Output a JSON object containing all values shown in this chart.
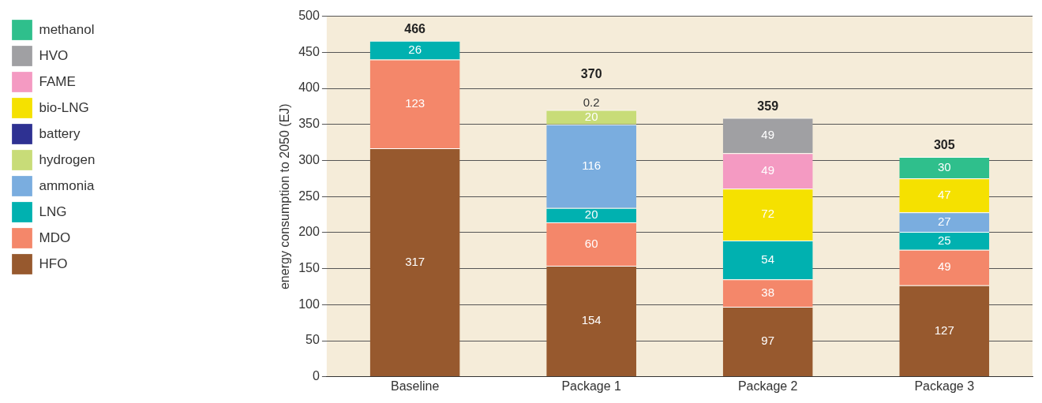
{
  "chart_data": {
    "type": "bar",
    "stacked": true,
    "ylabel": "energy consumption to 2050 (EJ)",
    "categories": [
      "Baseline",
      "Package 1",
      "Package 2",
      "Package 3"
    ],
    "ylim": [
      0,
      500
    ],
    "yticks": [
      0,
      50,
      100,
      150,
      200,
      250,
      300,
      350,
      400,
      450,
      500
    ],
    "grid": "y",
    "legend": "left",
    "data_labels": true,
    "totals": [
      "466",
      "370",
      "359",
      "305"
    ],
    "series": [
      {
        "name": "HFO",
        "color": "#97592e",
        "values": [
          317,
          154,
          97,
          127
        ]
      },
      {
        "name": "MDO",
        "color": "#f4876a",
        "values": [
          123,
          60,
          38,
          49
        ]
      },
      {
        "name": "LNG",
        "color": "#00b1b0",
        "values": [
          26,
          20,
          54,
          25
        ]
      },
      {
        "name": "ammonia",
        "color": "#7aaddf",
        "values": [
          null,
          116,
          null,
          27
        ]
      },
      {
        "name": "hydrogen",
        "color": "#c8dc78",
        "values": [
          null,
          20,
          null,
          null
        ]
      },
      {
        "name": "battery",
        "color": "#2e3192",
        "values": [
          null,
          0.2,
          null,
          null
        ]
      },
      {
        "name": "bio-LNG",
        "color": "#f5e100",
        "values": [
          null,
          null,
          72,
          47
        ]
      },
      {
        "name": "FAME",
        "color": "#f49ac2",
        "values": [
          null,
          null,
          49,
          null
        ]
      },
      {
        "name": "HVO",
        "color": "#a0a0a3",
        "values": [
          null,
          null,
          49,
          null
        ]
      },
      {
        "name": "methanol",
        "color": "#2fbf8c",
        "values": [
          null,
          null,
          null,
          30
        ]
      }
    ]
  }
}
